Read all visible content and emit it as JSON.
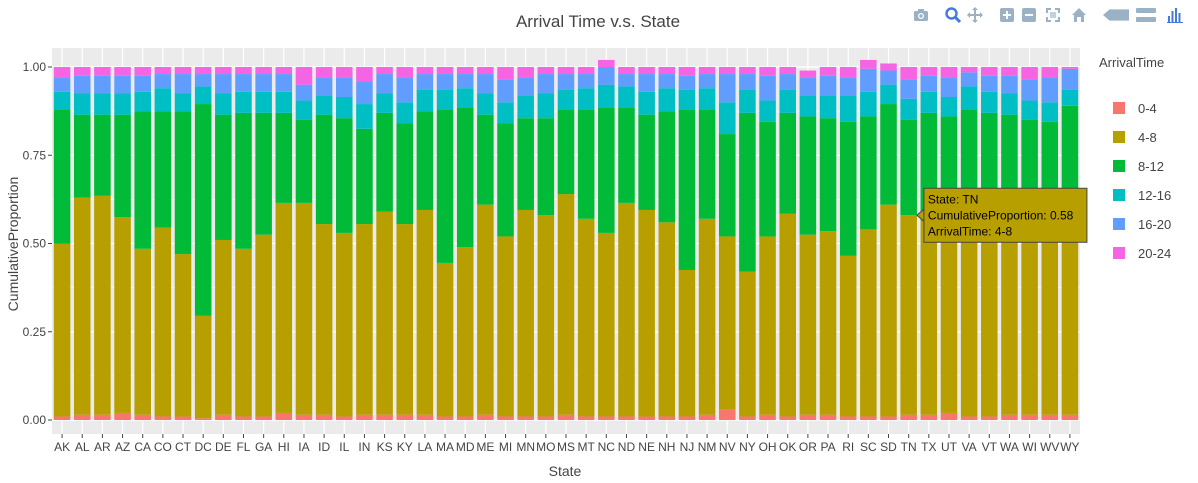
{
  "colors": {
    "series": [
      "#F8766D",
      "#B79F00",
      "#00BA38",
      "#00BFC4",
      "#619CFF",
      "#F564E3"
    ],
    "panel_bg": "#EBEBEB",
    "grid": "#FFFFFF",
    "text": "#444444",
    "modebar_icon": "#9BB1C6",
    "modebar_active": "#447ADB"
  },
  "modebar": {
    "buttons": [
      "camera-icon",
      "zoom-icon",
      "pan-icon",
      "zoom-in-icon",
      "zoom-out-icon",
      "autoscale-icon",
      "home-icon",
      "hover-closest-icon",
      "hover-compare-icon",
      "plotly-logo-icon"
    ]
  },
  "chart_data": {
    "type": "bar",
    "stacked": true,
    "title": "Arrival Time v.s. State",
    "xlabel": "State",
    "ylabel": "CumulativeProportion",
    "ylim": [
      0,
      1
    ],
    "yticks": [
      "0.00",
      "0.25",
      "0.50",
      "0.75",
      "1.00"
    ],
    "grid": true,
    "legend": {
      "title": "ArrivalTime",
      "position": "right"
    },
    "categories": [
      "AK",
      "AL",
      "AR",
      "AZ",
      "CA",
      "CO",
      "CT",
      "DC",
      "DE",
      "FL",
      "GA",
      "HI",
      "IA",
      "ID",
      "IL",
      "IN",
      "KS",
      "KY",
      "LA",
      "MA",
      "MD",
      "ME",
      "MI",
      "MN",
      "MO",
      "MS",
      "MT",
      "NC",
      "ND",
      "NE",
      "NH",
      "NJ",
      "NM",
      "NV",
      "NY",
      "OH",
      "OK",
      "OR",
      "PA",
      "RI",
      "SC",
      "SD",
      "TN",
      "TX",
      "UT",
      "VA",
      "VT",
      "WA",
      "WI",
      "WV",
      "WY"
    ],
    "series": [
      {
        "name": "0-4",
        "values": [
          0.01,
          0.015,
          0.015,
          0.02,
          0.015,
          0.01,
          0.01,
          0.005,
          0.015,
          0.01,
          0.01,
          0.02,
          0.015,
          0.015,
          0.01,
          0.015,
          0.015,
          0.015,
          0.015,
          0.01,
          0.01,
          0.015,
          0.01,
          0.01,
          0.01,
          0.015,
          0.01,
          0.01,
          0.01,
          0.01,
          0.01,
          0.01,
          0.015,
          0.03,
          0.01,
          0.015,
          0.01,
          0.015,
          0.015,
          0.01,
          0.01,
          0.01,
          0.015,
          0.015,
          0.02,
          0.01,
          0.01,
          0.015,
          0.015,
          0.015,
          0.015
        ]
      },
      {
        "name": "4-8",
        "values": [
          0.49,
          0.615,
          0.62,
          0.555,
          0.47,
          0.535,
          0.46,
          0.29,
          0.495,
          0.475,
          0.515,
          0.595,
          0.6,
          0.54,
          0.52,
          0.54,
          0.575,
          0.54,
          0.58,
          0.435,
          0.48,
          0.595,
          0.51,
          0.585,
          0.57,
          0.625,
          0.56,
          0.52,
          0.605,
          0.585,
          0.55,
          0.415,
          0.555,
          0.49,
          0.41,
          0.505,
          0.575,
          0.51,
          0.52,
          0.455,
          0.53,
          0.6,
          0.565,
          0.55,
          0.53,
          0.555,
          0.53,
          0.565,
          0.535,
          0.525,
          0.535
        ]
      },
      {
        "name": "8-12",
        "values": [
          0.38,
          0.235,
          0.23,
          0.29,
          0.39,
          0.33,
          0.405,
          0.6,
          0.355,
          0.385,
          0.345,
          0.255,
          0.235,
          0.31,
          0.325,
          0.27,
          0.28,
          0.285,
          0.28,
          0.435,
          0.395,
          0.255,
          0.32,
          0.26,
          0.275,
          0.24,
          0.31,
          0.355,
          0.27,
          0.27,
          0.315,
          0.455,
          0.31,
          0.29,
          0.45,
          0.325,
          0.285,
          0.335,
          0.32,
          0.38,
          0.32,
          0.285,
          0.27,
          0.305,
          0.31,
          0.315,
          0.33,
          0.285,
          0.3,
          0.305,
          0.34
        ]
      },
      {
        "name": "12-16",
        "values": [
          0.05,
          0.06,
          0.06,
          0.06,
          0.055,
          0.065,
          0.05,
          0.05,
          0.06,
          0.06,
          0.06,
          0.06,
          0.055,
          0.055,
          0.06,
          0.07,
          0.055,
          0.06,
          0.06,
          0.055,
          0.055,
          0.06,
          0.06,
          0.065,
          0.07,
          0.055,
          0.06,
          0.065,
          0.06,
          0.065,
          0.065,
          0.055,
          0.06,
          0.09,
          0.065,
          0.06,
          0.065,
          0.06,
          0.065,
          0.075,
          0.07,
          0.055,
          0.06,
          0.06,
          0.055,
          0.065,
          0.06,
          0.06,
          0.055,
          0.055,
          0.045
        ]
      },
      {
        "name": "16-20",
        "values": [
          0.04,
          0.05,
          0.05,
          0.05,
          0.045,
          0.04,
          0.055,
          0.035,
          0.055,
          0.05,
          0.05,
          0.05,
          0.045,
          0.05,
          0.055,
          0.065,
          0.055,
          0.07,
          0.045,
          0.045,
          0.04,
          0.055,
          0.065,
          0.05,
          0.055,
          0.045,
          0.04,
          0.05,
          0.035,
          0.05,
          0.04,
          0.04,
          0.04,
          0.08,
          0.045,
          0.07,
          0.045,
          0.05,
          0.055,
          0.05,
          0.065,
          0.04,
          0.055,
          0.045,
          0.055,
          0.04,
          0.045,
          0.05,
          0.06,
          0.07,
          0.06
        ]
      },
      {
        "name": "20-24",
        "values": [
          0.03,
          0.025,
          0.025,
          0.025,
          0.025,
          0.02,
          0.02,
          0.02,
          0.02,
          0.02,
          0.02,
          0.02,
          0.05,
          0.03,
          0.03,
          0.04,
          0.02,
          0.03,
          0.02,
          0.02,
          0.02,
          0.02,
          0.035,
          0.03,
          0.02,
          0.02,
          0.02,
          0.02,
          0.02,
          0.02,
          0.02,
          0.025,
          0.02,
          0.02,
          0.02,
          0.025,
          0.02,
          0.02,
          0.025,
          0.03,
          0.025,
          0.02,
          0.035,
          0.025,
          0.03,
          0.015,
          0.025,
          0.025,
          0.035,
          0.03,
          0.005
        ]
      }
    ],
    "tooltip": {
      "category": "TN",
      "series": "4-8",
      "lines": [
        "State: TN",
        "CumulativeProportion: 0.58",
        "ArrivalTime: 4-8"
      ]
    }
  }
}
